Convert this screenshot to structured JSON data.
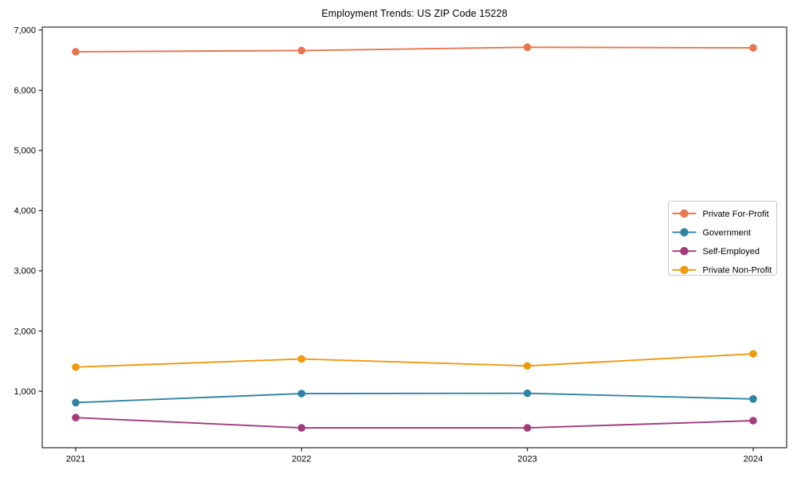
{
  "title": "Employment Trends: US ZIP Code 15228",
  "chart_data": {
    "type": "line",
    "title": "Employment Trends: US ZIP Code 15228",
    "x": [
      "2021",
      "2022",
      "2023",
      "2024"
    ],
    "series": [
      {
        "name": "Private For-Profit",
        "color": "#e8764e",
        "values": [
          6640,
          6660,
          6715,
          6705
        ]
      },
      {
        "name": "Government",
        "color": "#2e84a4",
        "values": [
          810,
          960,
          965,
          870
        ]
      },
      {
        "name": "Self-Employed",
        "color": "#a23a7c",
        "values": [
          560,
          390,
          390,
          510
        ]
      },
      {
        "name": "Private Non-Profit",
        "color": "#f0990e",
        "values": [
          1400,
          1535,
          1420,
          1620
        ]
      }
    ],
    "xlabel": "",
    "ylabel": "",
    "ylim": [
      60,
      7050
    ],
    "yticks": [
      1000,
      2000,
      3000,
      4000,
      5000,
      6000,
      7000
    ],
    "ytick_labels": [
      "1,000",
      "2,000",
      "3,000",
      "4,000",
      "5,000",
      "6,000",
      "7,000"
    ],
    "grid": false,
    "legend_position": "center right",
    "marker": "circle",
    "axis_color": "#000000",
    "legend_border_color": "#c9c9c9",
    "background_color": "#ffffff"
  }
}
